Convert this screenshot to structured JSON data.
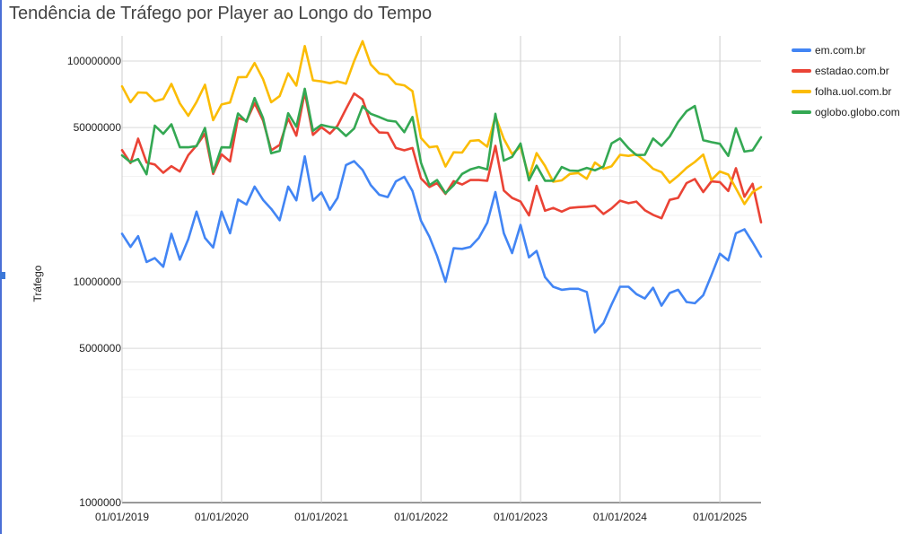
{
  "chart_data": {
    "type": "line",
    "title": "Tendência de Tráfego por Player ao Longo do Tempo",
    "xlabel": "",
    "ylabel": "Tráfego",
    "yscale": "log",
    "ylim": [
      1000000,
      130000000
    ],
    "xlim": [
      "2019-01-01",
      "2025-06-01"
    ],
    "x_ticks": [
      "01/01/2019",
      "01/01/2020",
      "01/01/2021",
      "01/01/2022",
      "01/01/2023",
      "01/01/2024",
      "01/01/2025"
    ],
    "y_ticks": [
      "100000000",
      "50000000",
      "10000000",
      "5000000",
      "1000000"
    ],
    "grid": true,
    "legend_position": "right",
    "x": [
      "2019-01",
      "2019-02",
      "2019-03",
      "2019-04",
      "2019-05",
      "2019-06",
      "2019-07",
      "2019-08",
      "2019-09",
      "2019-10",
      "2019-11",
      "2019-12",
      "2020-01",
      "2020-02",
      "2020-03",
      "2020-04",
      "2020-05",
      "2020-06",
      "2020-07",
      "2020-08",
      "2020-09",
      "2020-10",
      "2020-11",
      "2020-12",
      "2021-01",
      "2021-02",
      "2021-03",
      "2021-04",
      "2021-05",
      "2021-06",
      "2021-07",
      "2021-08",
      "2021-09",
      "2021-10",
      "2021-11",
      "2021-12",
      "2022-01",
      "2022-02",
      "2022-03",
      "2022-04",
      "2022-05",
      "2022-06",
      "2022-07",
      "2022-08",
      "2022-09",
      "2022-10",
      "2022-11",
      "2022-12",
      "2023-01",
      "2023-02",
      "2023-03",
      "2023-04",
      "2023-05",
      "2023-06",
      "2023-07",
      "2023-08",
      "2023-09",
      "2023-10",
      "2023-11",
      "2023-12",
      "2024-01",
      "2024-02",
      "2024-03",
      "2024-04",
      "2024-05",
      "2024-06",
      "2024-07",
      "2024-08",
      "2024-09",
      "2024-10",
      "2024-11",
      "2024-12",
      "2025-01",
      "2025-02",
      "2025-03",
      "2025-04",
      "2025-05",
      "2025-06"
    ],
    "series": [
      {
        "name": "em.com.br",
        "color": "#4285f4",
        "values": [
          16500000,
          14400000,
          16100000,
          12300000,
          12800000,
          11700000,
          16500000,
          12600000,
          15600000,
          20800000,
          15800000,
          14300000,
          20800000,
          16600000,
          23600000,
          22400000,
          27000000,
          23500000,
          21400000,
          19000000,
          27000000,
          23400000,
          37000000,
          23300000,
          25400000,
          21200000,
          24000000,
          33800000,
          35200000,
          32100000,
          27400000,
          24800000,
          24200000,
          28500000,
          29900000,
          25800000,
          18900000,
          16000000,
          13100000,
          10000000,
          14200000,
          14100000,
          14400000,
          15800000,
          18500000,
          25500000,
          16600000,
          13500000,
          18100000,
          12900000,
          13800000,
          10500000,
          9500000,
          9200000,
          9300000,
          9300000,
          9000000,
          5900000,
          6500000,
          7900000,
          9500000,
          9500000,
          8800000,
          8400000,
          9400000,
          7800000,
          8900000,
          9200000,
          8100000,
          8000000,
          8700000,
          10700000,
          13400000,
          12500000,
          16600000,
          17300000,
          15100000,
          13000000
        ]
      },
      {
        "name": "estadao.com.br",
        "color": "#ea4335",
        "values": [
          39500000,
          34500000,
          44500000,
          34700000,
          34000000,
          31200000,
          33400000,
          31600000,
          37500000,
          41400000,
          46900000,
          30800000,
          37800000,
          35100000,
          55300000,
          53500000,
          64400000,
          53800000,
          39400000,
          41700000,
          55000000,
          45900000,
          72300000,
          46300000,
          50200000,
          46900000,
          51000000,
          60700000,
          71300000,
          67000000,
          52400000,
          47500000,
          47300000,
          40400000,
          39400000,
          40400000,
          29400000,
          26900000,
          28000000,
          25000000,
          28600000,
          27600000,
          28900000,
          28900000,
          28700000,
          41300000,
          25900000,
          24000000,
          23100000,
          20000000,
          27200000,
          21000000,
          21600000,
          20800000,
          21600000,
          21800000,
          21900000,
          22100000,
          20300000,
          21500000,
          23300000,
          22700000,
          23100000,
          21100000,
          20100000,
          19400000,
          23500000,
          24000000,
          28000000,
          29200000,
          25500000,
          28500000,
          28300000,
          25800000,
          32700000,
          24300000,
          27800000,
          18600000
        ]
      },
      {
        "name": "folha.uol.com.br",
        "color": "#fbbc04",
        "values": [
          76800000,
          65100000,
          72100000,
          71800000,
          65800000,
          67400000,
          78800000,
          64300000,
          56500000,
          65200000,
          78100000,
          54000000,
          63600000,
          64900000,
          84400000,
          84700000,
          98000000,
          82800000,
          65100000,
          69400000,
          88000000,
          77400000,
          117000000,
          81800000,
          80900000,
          79400000,
          80900000,
          79000000,
          99900000,
          123000000,
          96500000,
          87900000,
          86400000,
          78800000,
          77600000,
          73000000,
          44800000,
          40700000,
          41100000,
          33300000,
          38600000,
          38500000,
          43500000,
          43800000,
          40900000,
          56300000,
          44400000,
          37900000,
          40900000,
          29800000,
          38300000,
          33500000,
          28400000,
          28800000,
          30800000,
          31100000,
          29300000,
          34700000,
          32500000,
          33400000,
          37600000,
          37200000,
          37800000,
          35300000,
          32500000,
          31400000,
          28100000,
          30200000,
          32800000,
          34900000,
          37700000,
          28900000,
          31600000,
          30600000,
          26500000,
          22500000,
          25500000,
          26900000
        ]
      },
      {
        "name": "oglobo.globo.com",
        "color": "#34a853",
        "values": [
          37400000,
          34800000,
          36000000,
          30700000,
          51000000,
          46800000,
          51700000,
          40700000,
          40700000,
          41200000,
          49800000,
          31400000,
          40700000,
          40600000,
          57900000,
          53200000,
          68000000,
          55200000,
          38200000,
          39200000,
          58000000,
          50400000,
          74900000,
          48300000,
          51400000,
          50300000,
          49700000,
          45800000,
          49500000,
          62400000,
          57700000,
          55800000,
          53800000,
          53200000,
          47600000,
          55800000,
          34600000,
          27400000,
          28900000,
          25200000,
          27400000,
          30800000,
          32300000,
          33100000,
          32300000,
          57700000,
          35400000,
          36800000,
          42300000,
          28800000,
          33600000,
          28700000,
          28700000,
          33100000,
          31900000,
          31800000,
          32800000,
          32000000,
          33300000,
          42400000,
          44600000,
          40300000,
          37500000,
          37600000,
          44600000,
          41300000,
          45500000,
          53000000,
          59300000,
          62600000,
          43800000,
          42900000,
          42200000,
          37200000,
          49600000,
          38900000,
          39400000,
          45200000
        ]
      }
    ]
  }
}
